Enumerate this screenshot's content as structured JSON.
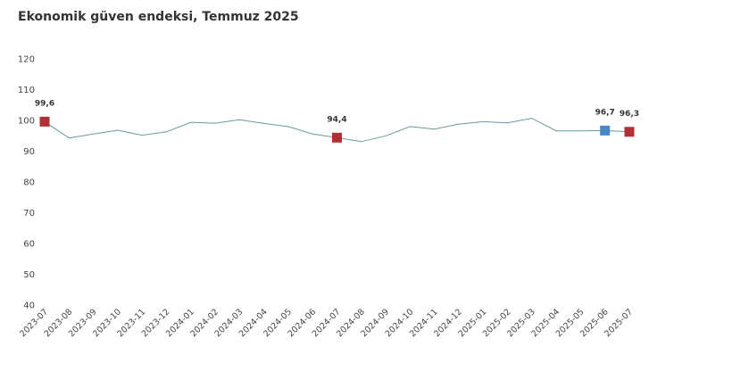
{
  "chart_data": {
    "type": "line",
    "title": "Ekonomik güven endeksi, Temmuz 2025",
    "xlabel": "",
    "ylabel": "",
    "ylim": [
      40,
      120
    ],
    "yticks": [
      120,
      110,
      100,
      90,
      80,
      70,
      60,
      50,
      40
    ],
    "grid": false,
    "categories": [
      "2023-07",
      "2023-08",
      "2023-09",
      "2023-10",
      "2023-11",
      "2023-12",
      "2024-01",
      "2024-02",
      "2024-03",
      "2024-04",
      "2024-05",
      "2024-06",
      "2024-07",
      "2024-08",
      "2024-09",
      "2024-10",
      "2024-11",
      "2024-12",
      "2025-01",
      "2025-02",
      "2025-03",
      "2025-04",
      "2025-05",
      "2025-06",
      "2025-07"
    ],
    "series": [
      {
        "values": [
          99.6,
          94.3,
          95.6,
          96.8,
          95.2,
          96.3,
          99.4,
          99.1,
          100.2,
          99.0,
          98.0,
          95.6,
          94.4,
          93.1,
          95.0,
          98.0,
          97.2,
          98.8,
          99.6,
          99.2,
          100.7,
          96.6,
          96.6,
          96.7,
          96.3
        ],
        "color": "#6a9a9a"
      }
    ],
    "highlights": [
      {
        "index": 0,
        "label": "99,6",
        "color": "#b03035"
      },
      {
        "index": 12,
        "label": "94,4",
        "color": "#b03035"
      },
      {
        "index": 23,
        "label": "96,7",
        "color": "#4a86c0"
      },
      {
        "index": 24,
        "label": "96,3",
        "color": "#b03035"
      }
    ]
  }
}
